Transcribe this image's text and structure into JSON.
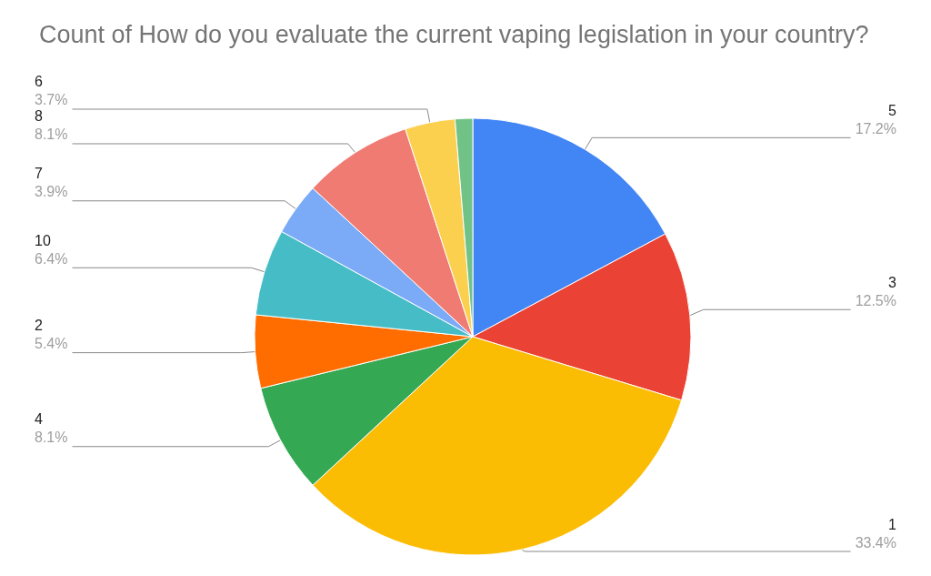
{
  "chart_data": {
    "type": "pie",
    "title": "Count of How do you evaluate the current vaping legislation in your country?",
    "categories": [
      "5",
      "3",
      "1",
      "4",
      "2",
      "10",
      "7",
      "8",
      "6",
      null
    ],
    "values": [
      17.2,
      12.5,
      33.4,
      8.1,
      5.4,
      6.4,
      3.9,
      8.1,
      3.7,
      1.3
    ],
    "value_labels": [
      "17.2%",
      "12.5%",
      "33.4%",
      "8.1%",
      "5.4%",
      "6.4%",
      "3.9%",
      "8.1%",
      "3.7%",
      null
    ],
    "colors": [
      "#4285f4",
      "#ea4335",
      "#fbbc04",
      "#34a853",
      "#ff6d01",
      "#46bdc6",
      "#7baaf7",
      "#f07b72",
      "#fcd04f",
      "#71c287"
    ],
    "legend": false
  }
}
